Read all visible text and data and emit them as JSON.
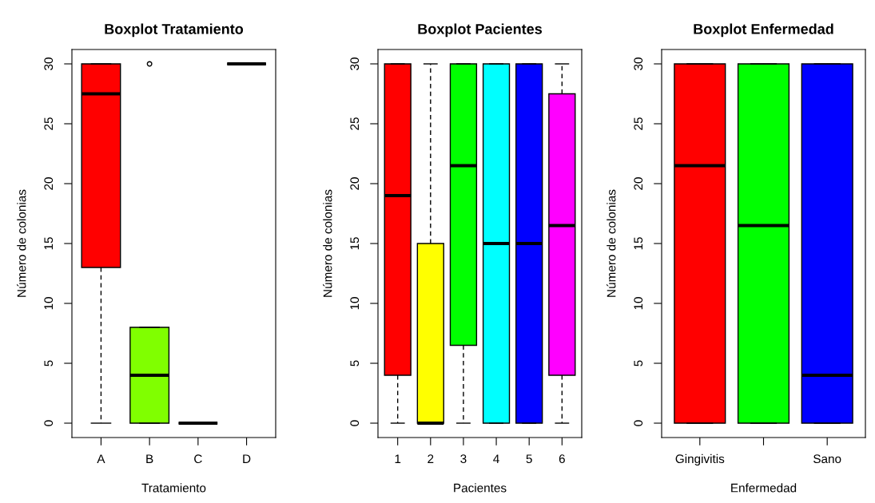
{
  "chart_data": [
    {
      "type": "box",
      "title": "Boxplot Tratamiento",
      "xlabel": "Tratamiento",
      "ylabel": "Número de colonias",
      "categories": [
        "A",
        "B",
        "C",
        "D"
      ],
      "colors": [
        "#ff0000",
        "#80ff00",
        null,
        null
      ],
      "ylim": [
        -1.2,
        31.2
      ],
      "yticks": [
        0,
        5,
        10,
        15,
        20,
        25,
        30
      ],
      "boxes": [
        {
          "low": 0,
          "q1": 13,
          "median": 27.5,
          "q3": 30,
          "high": 30
        },
        {
          "low": 0,
          "q1": 0,
          "median": 4,
          "q3": 8,
          "high": 8,
          "outliers": [
            30
          ]
        },
        {
          "low": 0,
          "q1": 0,
          "median": 0,
          "q3": 0,
          "high": 0
        },
        {
          "low": 30,
          "q1": 30,
          "median": 30,
          "q3": 30,
          "high": 30
        }
      ]
    },
    {
      "type": "box",
      "title": "Boxplot Pacientes",
      "xlabel": "Pacientes",
      "ylabel": "Número de colonias",
      "categories": [
        "1",
        "2",
        "3",
        "4",
        "5",
        "6"
      ],
      "colors": [
        "#ff0000",
        "#ffff00",
        "#00ff00",
        "#00ffff",
        "#0000ff",
        "#ff00ff"
      ],
      "ylim": [
        -1.2,
        31.2
      ],
      "yticks": [
        0,
        5,
        10,
        15,
        20,
        25,
        30
      ],
      "boxes": [
        {
          "low": 0,
          "q1": 4,
          "median": 19,
          "q3": 30,
          "high": 30
        },
        {
          "low": 0,
          "q1": 0,
          "median": 0,
          "q3": 15,
          "high": 30
        },
        {
          "low": 0,
          "q1": 6.5,
          "median": 21.5,
          "q3": 30,
          "high": 30
        },
        {
          "low": 0,
          "q1": 0,
          "median": 15,
          "q3": 30,
          "high": 30
        },
        {
          "low": 0,
          "q1": 0,
          "median": 15,
          "q3": 30,
          "high": 30
        },
        {
          "low": 0,
          "q1": 4,
          "median": 16.5,
          "q3": 27.5,
          "high": 30
        }
      ]
    },
    {
      "type": "box",
      "title": "Boxplot Enfermedad",
      "xlabel": "Enfermedad",
      "ylabel": "Número de colonias",
      "categories": [
        "Gingivitis",
        null,
        "Sano"
      ],
      "colors": [
        "#ff0000",
        "#00ff00",
        "#0000ff"
      ],
      "ylim": [
        -1.2,
        31.2
      ],
      "yticks": [
        0,
        5,
        10,
        15,
        20,
        25,
        30
      ],
      "boxes": [
        {
          "low": 0,
          "q1": 0,
          "median": 21.5,
          "q3": 30,
          "high": 30
        },
        {
          "low": 0,
          "q1": 0,
          "median": 16.5,
          "q3": 30,
          "high": 30
        },
        {
          "low": 0,
          "q1": 0,
          "median": 4,
          "q3": 30,
          "high": 30
        }
      ]
    }
  ]
}
